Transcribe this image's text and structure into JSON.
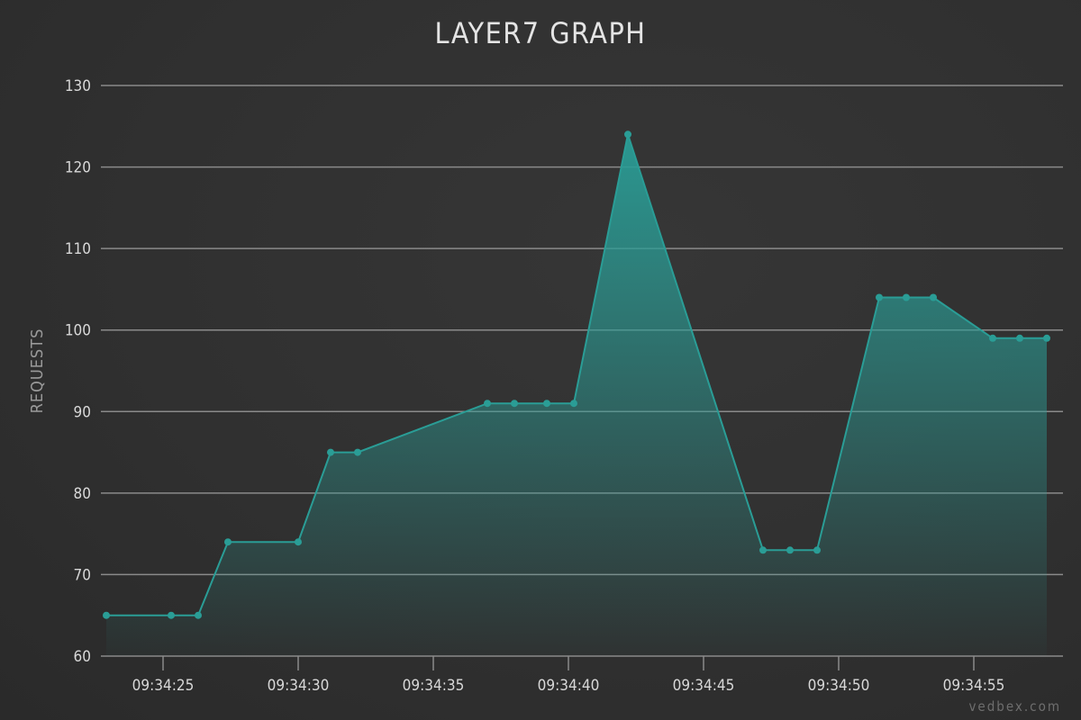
{
  "chart_data": {
    "type": "area",
    "title": "LAYER7 GRAPH",
    "xlabel": "",
    "ylabel": "REQUESTS",
    "ylim": [
      60,
      130
    ],
    "y_ticks": [
      60,
      70,
      80,
      90,
      100,
      110,
      120,
      130
    ],
    "x_range": [
      "09:34:22.7",
      "09:34:58.3"
    ],
    "x_ticks": [
      "09:34:25",
      "09:34:30",
      "09:34:35",
      "09:34:40",
      "09:34:45",
      "09:34:50",
      "09:34:55"
    ],
    "grid": true,
    "series": [
      {
        "color": "#2a9d96",
        "points": [
          {
            "x": "09:34:22.9",
            "y": 65
          },
          {
            "x": "09:34:25.3",
            "y": 65
          },
          {
            "x": "09:34:26.3",
            "y": 65
          },
          {
            "x": "09:34:27.4",
            "y": 74
          },
          {
            "x": "09:34:30.0",
            "y": 74
          },
          {
            "x": "09:34:31.2",
            "y": 85
          },
          {
            "x": "09:34:32.2",
            "y": 85
          },
          {
            "x": "09:34:37.0",
            "y": 91
          },
          {
            "x": "09:34:38.0",
            "y": 91
          },
          {
            "x": "09:34:39.2",
            "y": 91
          },
          {
            "x": "09:34:40.2",
            "y": 91
          },
          {
            "x": "09:34:42.2",
            "y": 124
          },
          {
            "x": "09:34:47.2",
            "y": 73
          },
          {
            "x": "09:34:48.2",
            "y": 73
          },
          {
            "x": "09:34:49.2",
            "y": 73
          },
          {
            "x": "09:34:51.5",
            "y": 104
          },
          {
            "x": "09:34:52.5",
            "y": 104
          },
          {
            "x": "09:34:53.5",
            "y": 104
          },
          {
            "x": "09:34:55.7",
            "y": 99
          },
          {
            "x": "09:34:56.7",
            "y": 99
          },
          {
            "x": "09:34:57.7",
            "y": 99
          }
        ]
      }
    ]
  },
  "watermark": "vedbex.com"
}
